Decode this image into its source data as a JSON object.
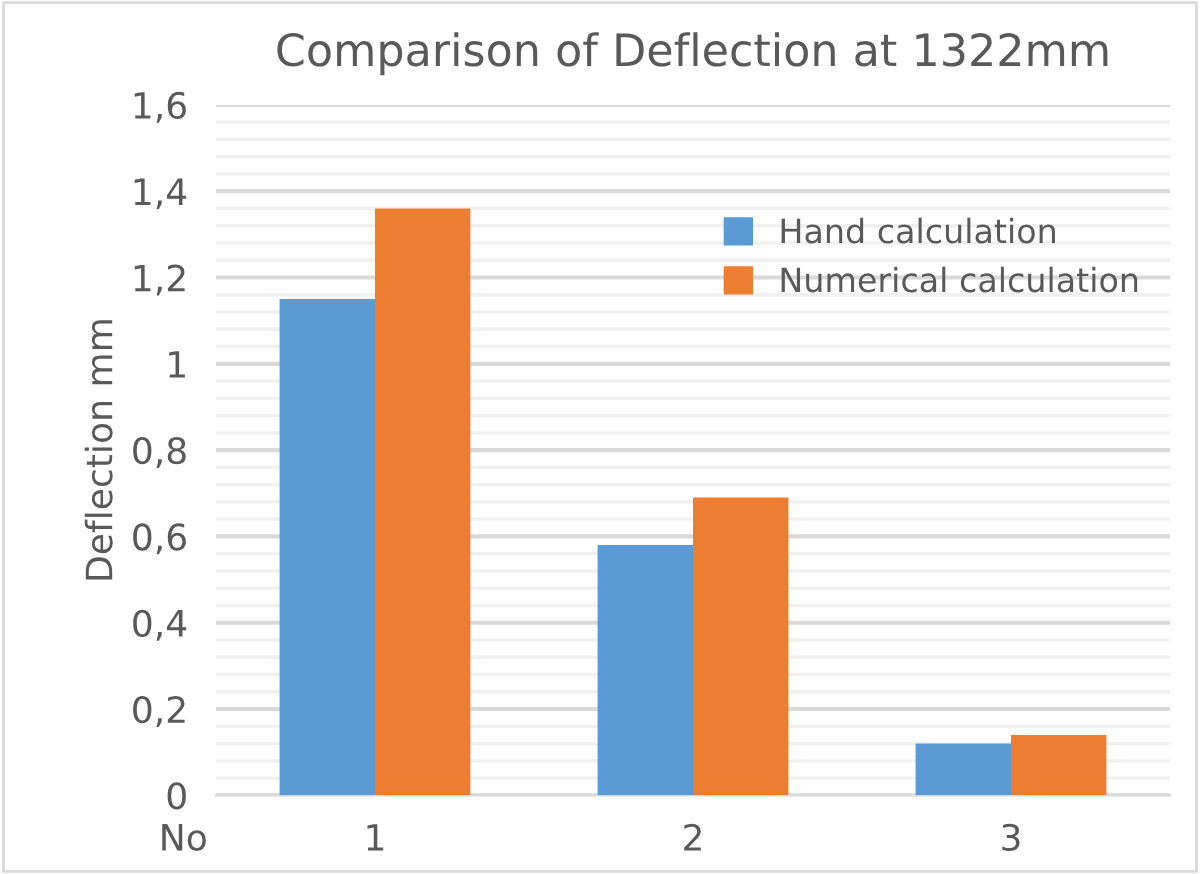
{
  "chart_data": {
    "type": "bar",
    "title": "Comparison of Deflection at 1322mm",
    "xlabel": "No",
    "ylabel": "Deflection mm",
    "categories": [
      "1",
      "2",
      "3"
    ],
    "series": [
      {
        "name": "Hand calculation",
        "color": "#5b9bd5",
        "values": [
          1.15,
          0.58,
          0.12
        ]
      },
      {
        "name": "Numerical calculation",
        "color": "#ed7d31",
        "values": [
          1.36,
          0.69,
          0.14
        ]
      }
    ],
    "ylim": [
      0,
      1.6
    ],
    "yticks": [
      {
        "value": 0,
        "label": "0"
      },
      {
        "value": 0.04,
        "label": null
      },
      {
        "value": 0.08,
        "label": null
      },
      {
        "value": 0.12,
        "label": null
      },
      {
        "value": 0.16,
        "label": null
      },
      {
        "value": 0.2,
        "label": "0,2"
      },
      {
        "value": 0.24,
        "label": null
      },
      {
        "value": 0.28,
        "label": null
      },
      {
        "value": 0.32,
        "label": null
      },
      {
        "value": 0.36,
        "label": null
      },
      {
        "value": 0.4,
        "label": "0,4"
      },
      {
        "value": 0.44,
        "label": null
      },
      {
        "value": 0.48,
        "label": null
      },
      {
        "value": 0.52,
        "label": null
      },
      {
        "value": 0.56,
        "label": null
      },
      {
        "value": 0.6,
        "label": "0,6"
      },
      {
        "value": 0.64,
        "label": null
      },
      {
        "value": 0.68,
        "label": null
      },
      {
        "value": 0.72,
        "label": null
      },
      {
        "value": 0.76,
        "label": null
      },
      {
        "value": 0.8,
        "label": "0,8"
      },
      {
        "value": 0.84,
        "label": null
      },
      {
        "value": 0.88,
        "label": null
      },
      {
        "value": 0.92,
        "label": null
      },
      {
        "value": 0.96,
        "label": null
      },
      {
        "value": 1,
        "label": "1"
      },
      {
        "value": 1.04,
        "label": null
      },
      {
        "value": 1.08,
        "label": null
      },
      {
        "value": 1.12,
        "label": null
      },
      {
        "value": 1.16,
        "label": null
      },
      {
        "value": 1.2,
        "label": "1,2"
      },
      {
        "value": 1.24,
        "label": null
      },
      {
        "value": 1.28,
        "label": null
      },
      {
        "value": 1.32,
        "label": null
      },
      {
        "value": 1.36,
        "label": null
      },
      {
        "value": 1.4,
        "label": "1,4"
      },
      {
        "value": 1.44,
        "label": null
      },
      {
        "value": 1.48,
        "label": null
      },
      {
        "value": 1.52,
        "label": null
      },
      {
        "value": 1.56,
        "label": null
      },
      {
        "value": 1.6,
        "label": "1,6"
      }
    ],
    "grid": "y",
    "legend": "top right"
  }
}
